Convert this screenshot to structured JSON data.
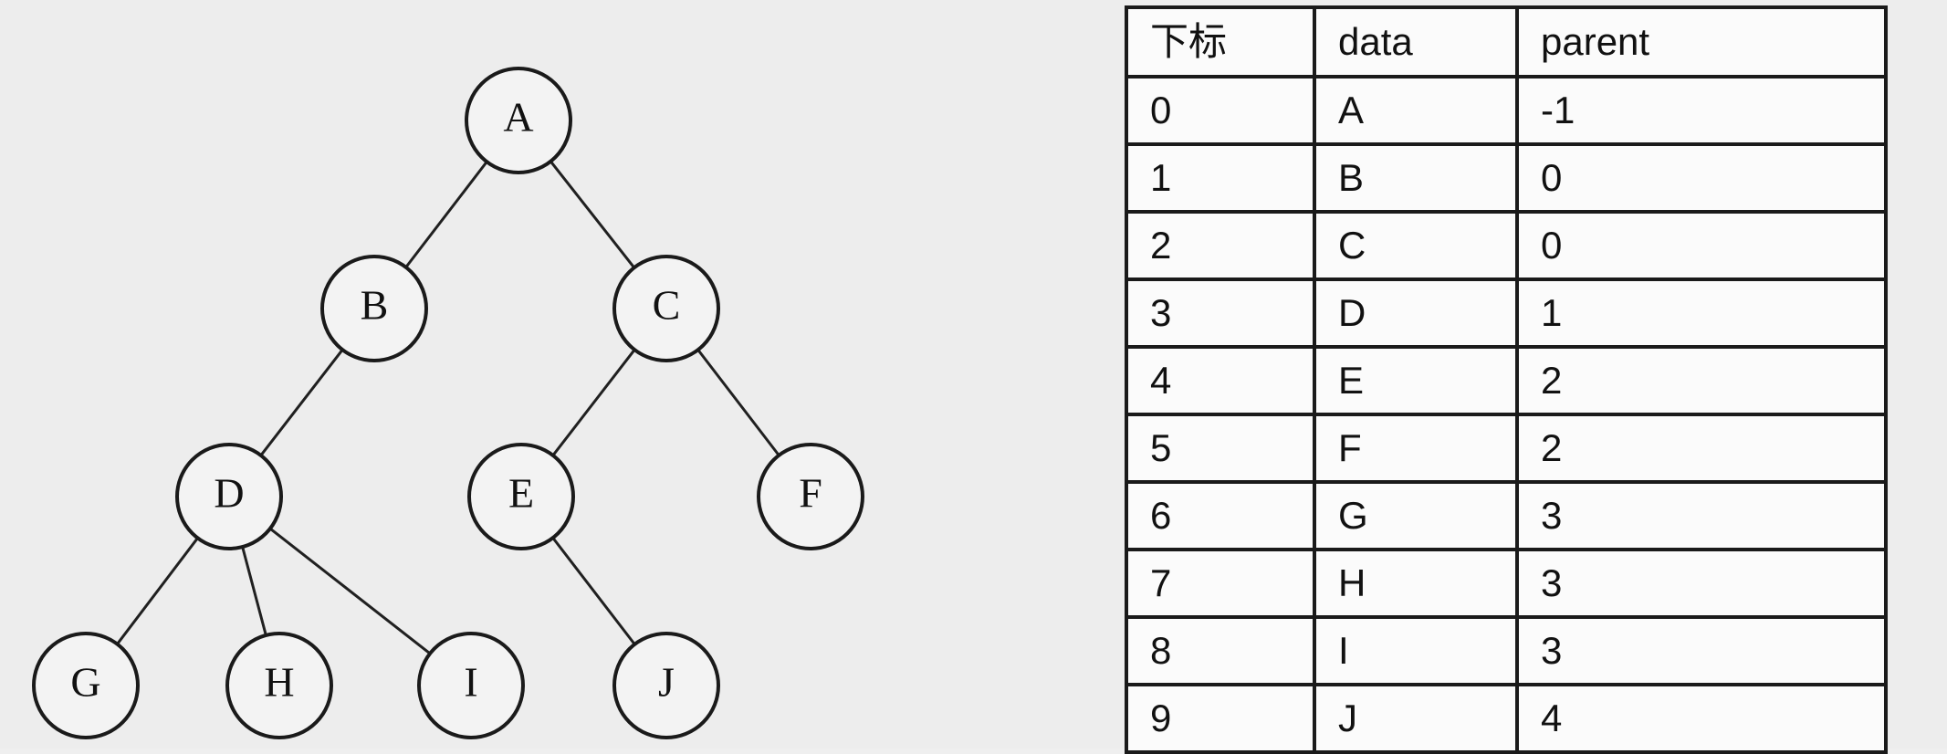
{
  "tree": {
    "nodes": [
      {
        "id": "A",
        "label": "A"
      },
      {
        "id": "B",
        "label": "B"
      },
      {
        "id": "C",
        "label": "C"
      },
      {
        "id": "D",
        "label": "D"
      },
      {
        "id": "E",
        "label": "E"
      },
      {
        "id": "F",
        "label": "F"
      },
      {
        "id": "G",
        "label": "G"
      },
      {
        "id": "H",
        "label": "H"
      },
      {
        "id": "I",
        "label": "I"
      },
      {
        "id": "J",
        "label": "J"
      }
    ],
    "edges": [
      {
        "from": "A",
        "to": "B"
      },
      {
        "from": "A",
        "to": "C"
      },
      {
        "from": "B",
        "to": "D"
      },
      {
        "from": "C",
        "to": "E"
      },
      {
        "from": "C",
        "to": "F"
      },
      {
        "from": "D",
        "to": "G"
      },
      {
        "from": "D",
        "to": "H"
      },
      {
        "from": "D",
        "to": "I"
      },
      {
        "from": "E",
        "to": "J"
      }
    ]
  },
  "table": {
    "headers": [
      "下标",
      "data",
      "parent"
    ],
    "rows": [
      [
        "0",
        "A",
        "-1"
      ],
      [
        "1",
        "B",
        "0"
      ],
      [
        "2",
        "C",
        "0"
      ],
      [
        "3",
        "D",
        "1"
      ],
      [
        "4",
        "E",
        "2"
      ],
      [
        "5",
        "F",
        "2"
      ],
      [
        "6",
        "G",
        "3"
      ],
      [
        "7",
        "H",
        "3"
      ],
      [
        "8",
        "I",
        "3"
      ],
      [
        "9",
        "J",
        "4"
      ]
    ]
  }
}
